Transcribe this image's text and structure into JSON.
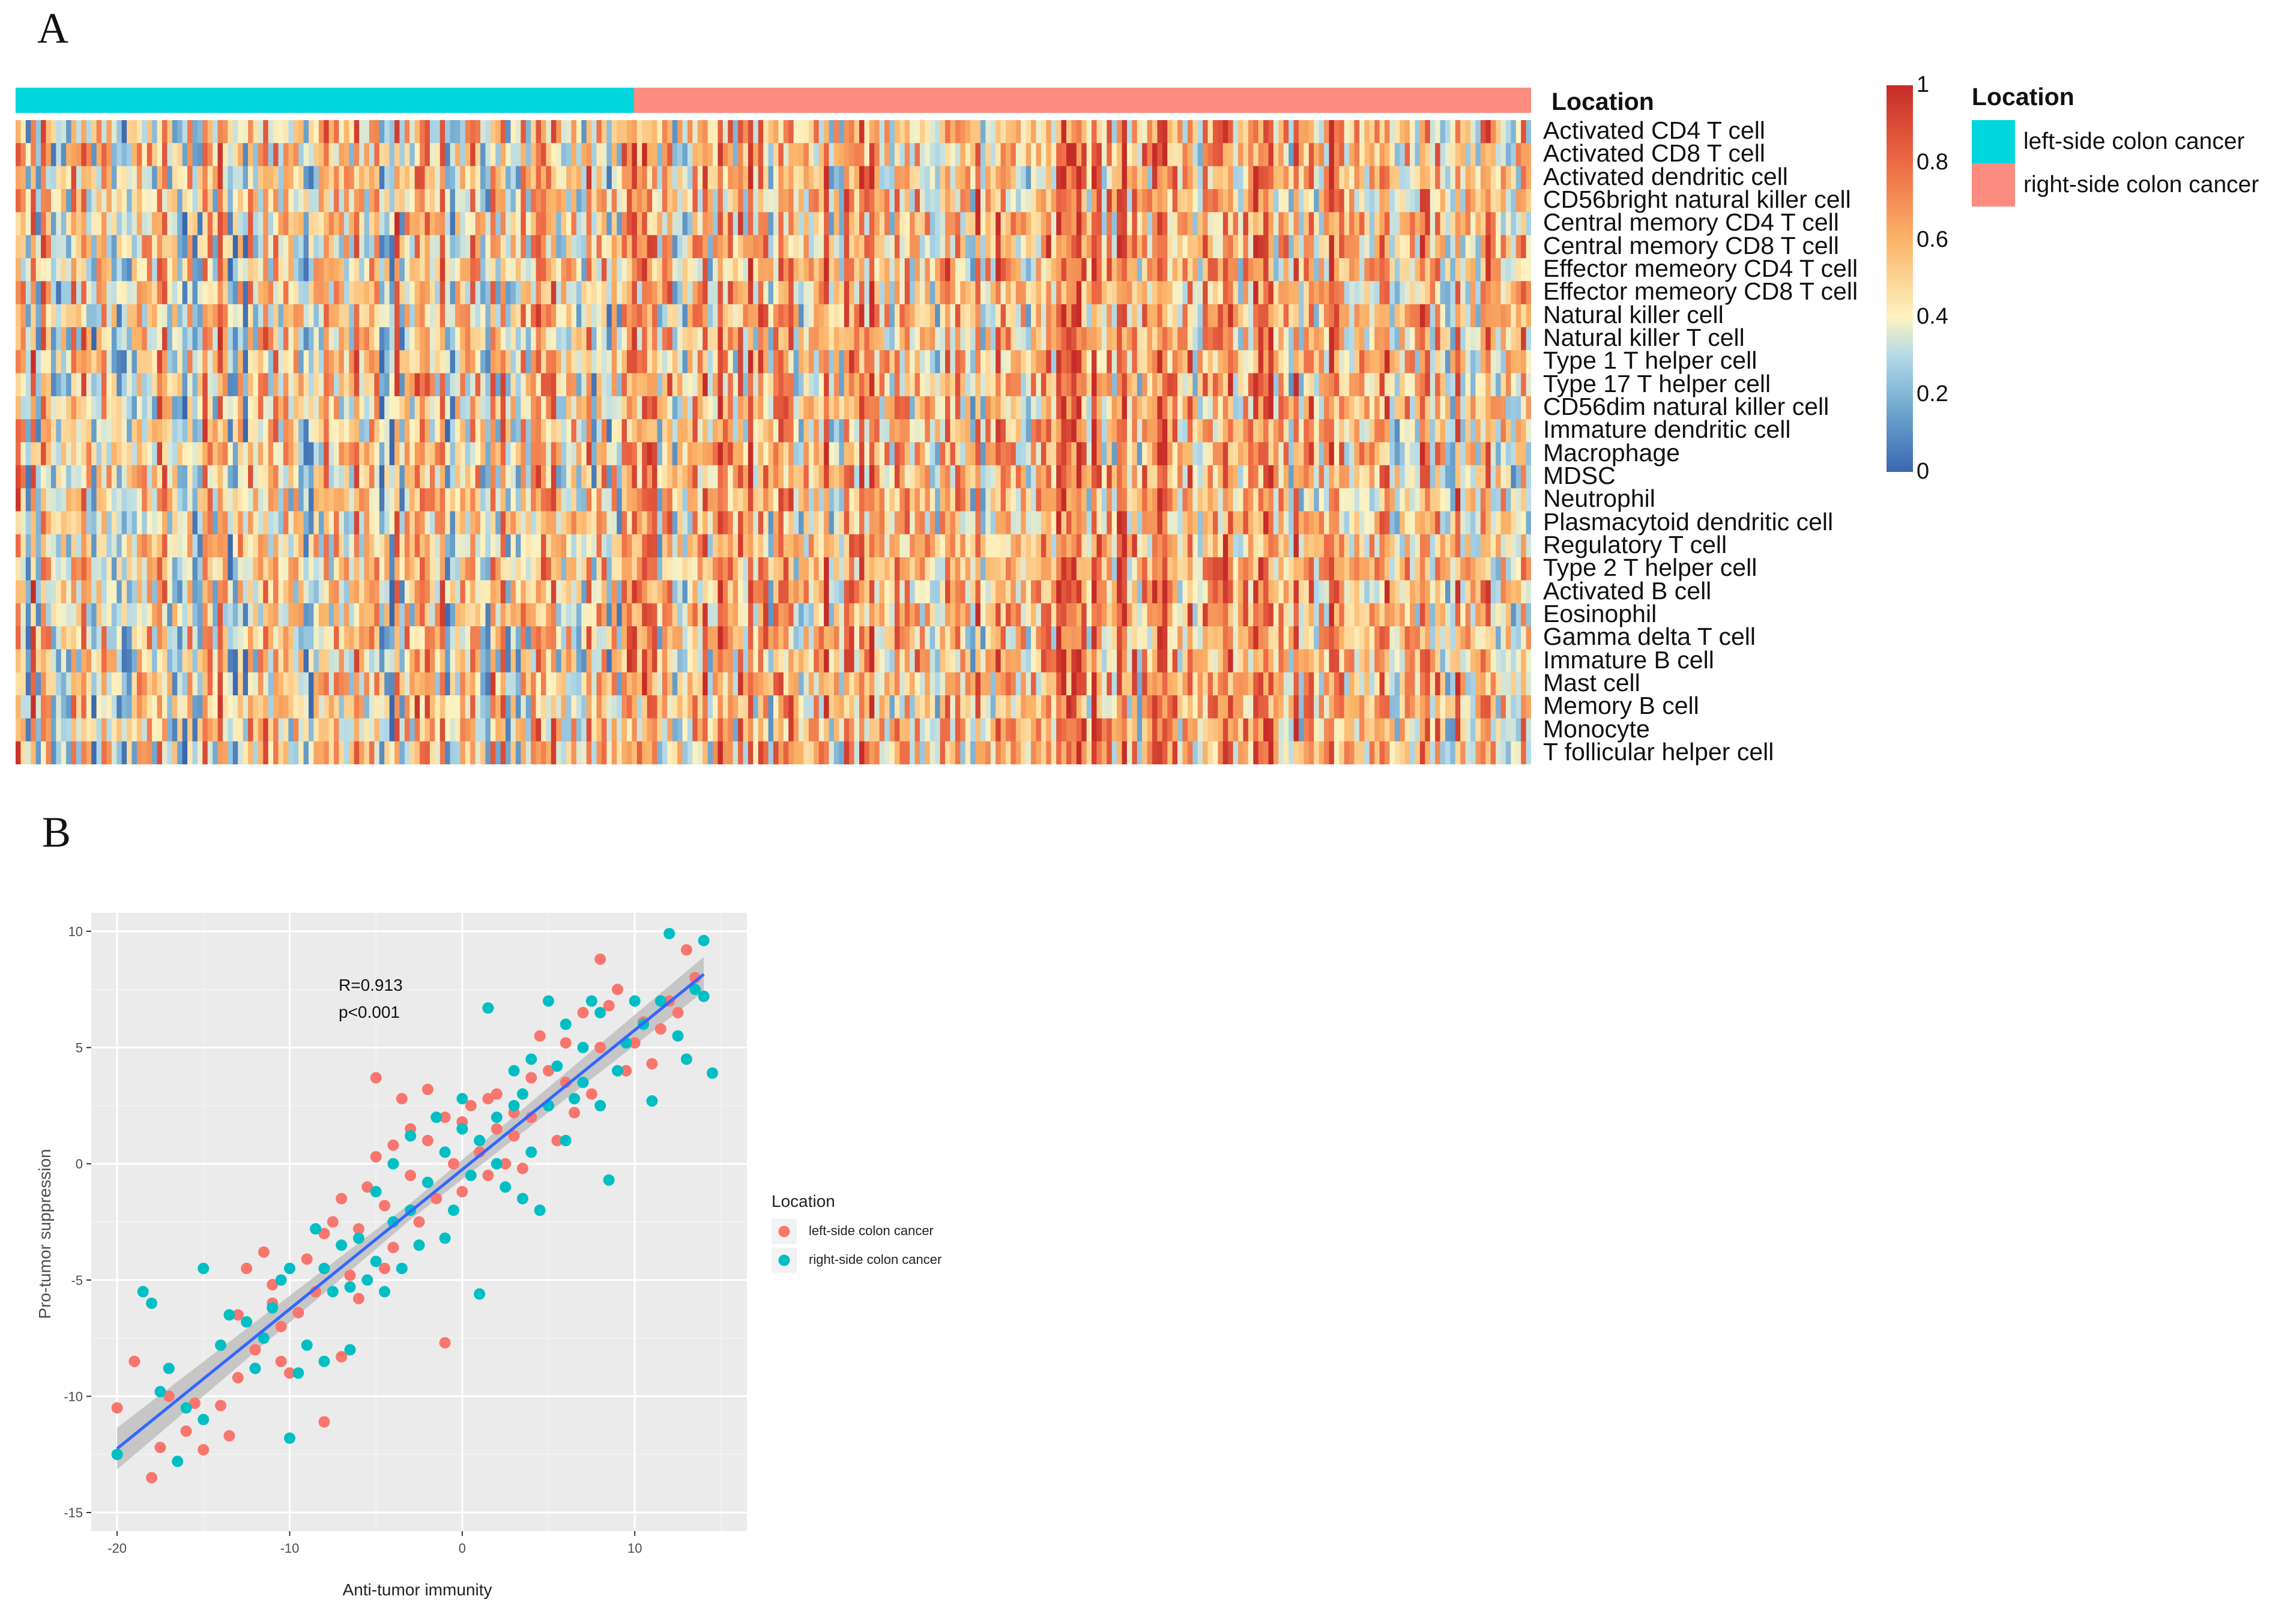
{
  "panels": {
    "a_label": "A",
    "b_label": "B"
  },
  "heatmap": {
    "location_title": "Location",
    "row_labels": [
      "Activated CD4 T cell",
      "Activated CD8 T cell",
      "Activated dendritic cell",
      "CD56bright natural killer cell",
      "Central memory CD4 T cell",
      "Central memory CD8 T cell",
      "Effector memeory CD4 T cell",
      "Effector memeory CD8 T cell",
      "Natural killer cell",
      "Natural killer T cell",
      "Type 1 T helper cell",
      "Type 17 T helper cell",
      "CD56dim natural killer cell",
      "Immature dendritic cell",
      "Macrophage",
      "MDSC",
      "Neutrophil",
      "Plasmacytoid dendritic cell",
      "Regulatory T cell",
      "Type 2 T helper cell",
      "Activated B cell",
      "Eosinophil",
      "Gamma delta T cell",
      "Immature  B cell",
      "Mast cell",
      "Memory B cell",
      "Monocyte",
      "T follicular helper cell"
    ],
    "colorbar_ticks": [
      "1",
      "0.8",
      "0.6",
      "0.4",
      "0.2",
      "0"
    ],
    "legend": {
      "title": "Location",
      "items": [
        "left-side colon cancer",
        "right-side colon cancer"
      ]
    },
    "colors": {
      "left": "#00d6de",
      "right": "#fb8c7f"
    }
  },
  "chart_data": {
    "type": "scatter",
    "title": "",
    "xlabel": "Anti-tumor immunity",
    "ylabel": "Pro-tumor suppression",
    "xlim": [
      -21.5,
      16.5
    ],
    "ylim": [
      -15.8,
      10.8
    ],
    "x_ticks": [
      -20,
      -10,
      0,
      10
    ],
    "y_ticks": [
      -15,
      -10,
      -5,
      0,
      5,
      10
    ],
    "x_tick_labels": [
      "-20",
      "-10",
      "0",
      "10"
    ],
    "y_tick_labels": [
      "-15",
      "-10",
      "-5",
      "0",
      "5",
      "10"
    ],
    "annotations": [
      "R=0.913",
      "p<0.001"
    ],
    "legend_title": "Location",
    "grid": true,
    "regression": {
      "slope": 0.6,
      "intercept": -0.25,
      "x_range": [
        -20,
        14
      ]
    },
    "series": [
      {
        "name": "left-side colon cancer",
        "color": "#f8766d",
        "points": [
          [
            -20,
            -10.5
          ],
          [
            -19,
            -8.5
          ],
          [
            -18,
            -13.5
          ],
          [
            -17.5,
            -12.2
          ],
          [
            -17,
            -10
          ],
          [
            -16,
            -11.5
          ],
          [
            -15.5,
            -10.3
          ],
          [
            -15,
            -12.3
          ],
          [
            -14,
            -10.4
          ],
          [
            -13.5,
            -11.7
          ],
          [
            -13,
            -9.2
          ],
          [
            -13,
            -6.5
          ],
          [
            -12.5,
            -4.5
          ],
          [
            -12,
            -8
          ],
          [
            -11.5,
            -3.8
          ],
          [
            -11,
            -5.2
          ],
          [
            -11,
            -6
          ],
          [
            -10.5,
            -7
          ],
          [
            -10.5,
            -8.5
          ],
          [
            -10,
            -9
          ],
          [
            -9.5,
            -6.4
          ],
          [
            -9,
            -4.1
          ],
          [
            -8.5,
            -5.5
          ],
          [
            -8,
            -11.1
          ],
          [
            -8,
            -3
          ],
          [
            -7.5,
            -2.5
          ],
          [
            -7,
            -8.3
          ],
          [
            -7,
            -1.5
          ],
          [
            -6.5,
            -4.8
          ],
          [
            -6,
            -5.8
          ],
          [
            -6,
            -2.8
          ],
          [
            -5.5,
            -1
          ],
          [
            -5,
            0.3
          ],
          [
            -5,
            3.7
          ],
          [
            -4.5,
            -4.5
          ],
          [
            -4.5,
            -1.8
          ],
          [
            -4,
            0.8
          ],
          [
            -4,
            -3.6
          ],
          [
            -3.5,
            2.8
          ],
          [
            -3,
            -0.5
          ],
          [
            -3,
            1.5
          ],
          [
            -2.5,
            -2.5
          ],
          [
            -2,
            3.2
          ],
          [
            -2,
            1
          ],
          [
            -1.5,
            -1.5
          ],
          [
            -1,
            -7.7
          ],
          [
            -1,
            2
          ],
          [
            -0.5,
            0
          ],
          [
            0,
            1.8
          ],
          [
            0,
            -1.2
          ],
          [
            0.5,
            2.5
          ],
          [
            1,
            0.5
          ],
          [
            1.5,
            2.8
          ],
          [
            1.5,
            -0.5
          ],
          [
            2,
            1.5
          ],
          [
            2,
            3
          ],
          [
            2.5,
            0
          ],
          [
            3,
            1.2
          ],
          [
            3,
            2.2
          ],
          [
            3.5,
            -0.2
          ],
          [
            4,
            2
          ],
          [
            4,
            3.7
          ],
          [
            4.5,
            5.5
          ],
          [
            5,
            2.5
          ],
          [
            5,
            4
          ],
          [
            5.5,
            1
          ],
          [
            6,
            3.5
          ],
          [
            6,
            5.2
          ],
          [
            6.5,
            2.2
          ],
          [
            7,
            6.5
          ],
          [
            7.5,
            3
          ],
          [
            8,
            5
          ],
          [
            8,
            8.8
          ],
          [
            8.5,
            6.8
          ],
          [
            9,
            7.5
          ],
          [
            9.5,
            4
          ],
          [
            10,
            5.2
          ],
          [
            10.5,
            6.1
          ],
          [
            11,
            4.3
          ],
          [
            11.5,
            5.8
          ],
          [
            12,
            7
          ],
          [
            12.5,
            6.5
          ],
          [
            13,
            9.2
          ],
          [
            13.5,
            8
          ]
        ]
      },
      {
        "name": "right-side colon cancer",
        "color": "#00bfc4",
        "points": [
          [
            -20,
            -12.5
          ],
          [
            -18.5,
            -5.5
          ],
          [
            -18,
            -6
          ],
          [
            -17.5,
            -9.8
          ],
          [
            -17,
            -8.8
          ],
          [
            -16.5,
            -12.8
          ],
          [
            -16,
            -10.5
          ],
          [
            -15,
            -11
          ],
          [
            -15,
            -4.5
          ],
          [
            -14,
            -7.8
          ],
          [
            -13.5,
            -6.5
          ],
          [
            -12.5,
            -6.8
          ],
          [
            -12,
            -8.8
          ],
          [
            -11.5,
            -7.5
          ],
          [
            -11,
            -6.2
          ],
          [
            -10.5,
            -5
          ],
          [
            -10,
            -11.8
          ],
          [
            -10,
            -4.5
          ],
          [
            -9.5,
            -9
          ],
          [
            -9,
            -7.8
          ],
          [
            -8.5,
            -2.8
          ],
          [
            -8,
            -8.5
          ],
          [
            -8,
            -4.5
          ],
          [
            -7.5,
            -5.5
          ],
          [
            -7,
            -3.5
          ],
          [
            -6.5,
            -8
          ],
          [
            -6.5,
            -5.3
          ],
          [
            -6,
            -3.2
          ],
          [
            -5.5,
            -5
          ],
          [
            -5,
            -4.2
          ],
          [
            -5,
            -1.2
          ],
          [
            -4.5,
            -5.5
          ],
          [
            -4,
            -2.5
          ],
          [
            -4,
            0
          ],
          [
            -3.5,
            -4.5
          ],
          [
            -3,
            -2
          ],
          [
            -3,
            1.2
          ],
          [
            -2.5,
            -3.5
          ],
          [
            -2,
            -0.8
          ],
          [
            -1.5,
            2
          ],
          [
            -1,
            -3.2
          ],
          [
            -1,
            0.5
          ],
          [
            -0.5,
            -2
          ],
          [
            0,
            1.5
          ],
          [
            0,
            2.8
          ],
          [
            0.5,
            -0.5
          ],
          [
            1,
            -5.6
          ],
          [
            1,
            1
          ],
          [
            1.5,
            6.7
          ],
          [
            2,
            0
          ],
          [
            2,
            2
          ],
          [
            2.5,
            -1
          ],
          [
            3,
            2.5
          ],
          [
            3,
            4
          ],
          [
            3.5,
            -1.5
          ],
          [
            3.5,
            3
          ],
          [
            4,
            0.5
          ],
          [
            4,
            4.5
          ],
          [
            4.5,
            -2
          ],
          [
            5,
            2.5
          ],
          [
            5,
            7
          ],
          [
            5.5,
            4.2
          ],
          [
            6,
            1
          ],
          [
            6,
            6
          ],
          [
            6.5,
            2.8
          ],
          [
            7,
            5
          ],
          [
            7,
            3.5
          ],
          [
            7.5,
            7
          ],
          [
            8,
            2.5
          ],
          [
            8,
            6.5
          ],
          [
            8.5,
            -0.7
          ],
          [
            9,
            4
          ],
          [
            9.5,
            5.2
          ],
          [
            10,
            7
          ],
          [
            10.5,
            6
          ],
          [
            11,
            2.7
          ],
          [
            11.5,
            7
          ],
          [
            12,
            9.9
          ],
          [
            12.5,
            5.5
          ],
          [
            13,
            4.5
          ],
          [
            13.5,
            7.5
          ],
          [
            14,
            9.6
          ],
          [
            14,
            7.2
          ],
          [
            14.5,
            3.9
          ]
        ]
      }
    ]
  }
}
